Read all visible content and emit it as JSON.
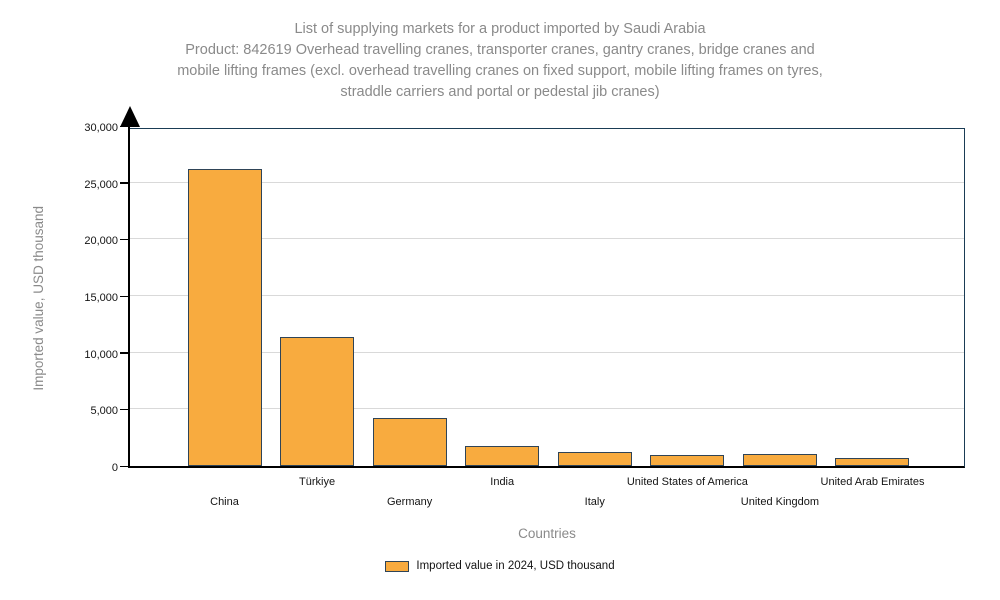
{
  "title": {
    "text": "List of supplying markets for a product imported by Saudi Arabia\nProduct: 842619 Overhead travelling cranes, transporter cranes, gantry cranes, bridge cranes and\nmobile lifting frames (excl. overhead travelling cranes on fixed support, mobile lifting frames on tyres,\nstraddle carriers and portal or pedestal jib cranes)"
  },
  "chart_data": {
    "type": "bar",
    "title": "List of supplying markets for a product imported by Saudi Arabia — Product: 842619 Overhead travelling cranes, transporter cranes, gantry cranes, bridge cranes and mobile lifting frames (excl. overhead travelling cranes on fixed support, mobile lifting frames on tyres, straddle carriers and portal or pedestal jib cranes)",
    "categories": [
      "China",
      "Türkiye",
      "Germany",
      "India",
      "Italy",
      "United States of America",
      "United Kingdom",
      "United Arab Emirates"
    ],
    "values": [
      26200,
      11350,
      4280,
      1800,
      1250,
      980,
      1080,
      740
    ],
    "series_name": "Imported value in 2024, USD thousand",
    "xlabel": "Countries",
    "ylabel": "Imported value, USD thousand",
    "ylim": [
      0,
      30000
    ],
    "ytick_step": 5000,
    "ytick_labels": [
      "0",
      "5,000",
      "10,000",
      "15,000",
      "20,000",
      "25,000",
      "30,000"
    ],
    "grid": true,
    "legend_position": "bottom"
  },
  "legend": {
    "label": "Imported value in 2024, USD thousand"
  },
  "colors": {
    "bar_fill": "#f8ab3f",
    "bar_border": "#2f4457",
    "plot_border": "#1a3c55",
    "gridline": "#d9d9d9",
    "title_text": "#8a8a8a",
    "tick_text": "#141414"
  }
}
